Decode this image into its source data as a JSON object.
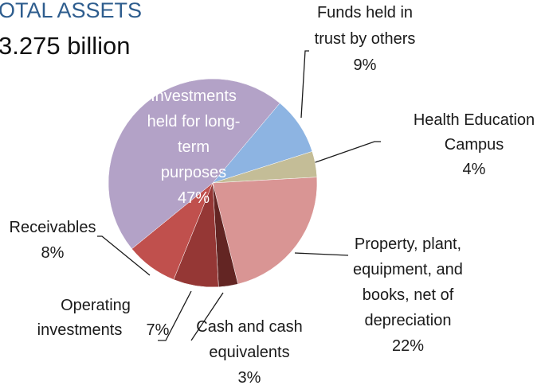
{
  "chart_data": {
    "type": "pie",
    "title": "OTAL ASSETS",
    "subtitle": "3.275 billion",
    "categories": [
      "Funds held in\ntrust by others",
      "Health Education\nCampus",
      "Property, plant,\nequipment, and\nbooks, net of\ndepreciation",
      "Cash and cash\nequivalents",
      "Operating\ninvestments",
      "Receivables",
      "Investments\nheld for long-\nterm\npurposes"
    ],
    "values": [
      9,
      4,
      22,
      3,
      7,
      8,
      47
    ],
    "value_labels": [
      "9%",
      "4%",
      "22%",
      "3%",
      "7%",
      "8%",
      "47%"
    ],
    "colors": [
      "#8db4e2",
      "#c4bd97",
      "#d99594",
      "#632523",
      "#953735",
      "#c0504d",
      "#b3a2c7"
    ]
  }
}
